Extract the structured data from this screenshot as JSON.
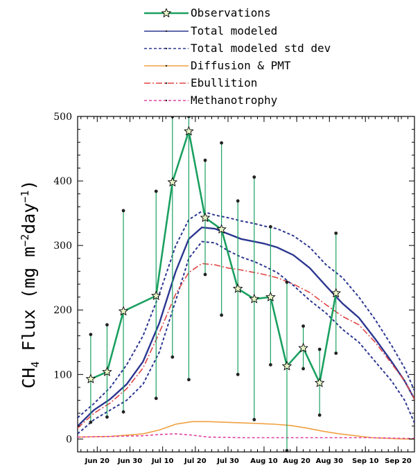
{
  "chart_data": {
    "type": "line",
    "ylabel_main": "CH",
    "ylabel_sub": "4",
    "ylabel_rest": " Flux (mg m",
    "ylabel_sup1": "−2",
    "ylabel_mid": "day",
    "ylabel_sup2": "−1",
    "ylabel_end": ")",
    "ylim": [
      -20,
      500
    ],
    "xlim": [
      165,
      268
    ],
    "yticks": [
      0,
      100,
      200,
      300,
      400,
      500
    ],
    "xticks": [
      {
        "day": 171,
        "label": "Jun 20"
      },
      {
        "day": 181,
        "label": "Jun 30"
      },
      {
        "day": 191,
        "label": "Jul 10"
      },
      {
        "day": 201,
        "label": "Jul 20"
      },
      {
        "day": 211,
        "label": "Jul 30"
      },
      {
        "day": 222,
        "label": "Aug 10"
      },
      {
        "day": 232,
        "label": "Aug 20"
      },
      {
        "day": 242,
        "label": "Aug 30"
      },
      {
        "day": 253,
        "label": "Sep 10"
      },
      {
        "day": 263,
        "label": "Sep 20"
      }
    ],
    "legend_placement": "top",
    "series": [
      {
        "name": "Observations",
        "color": "#1aa060",
        "style": "solid-star",
        "x": [
          169,
          174,
          179,
          189,
          194,
          199,
          204,
          209,
          214,
          219,
          224,
          229,
          234,
          239,
          244,
          249,
          254
        ],
        "y": [
          93,
          104,
          198,
          222,
          398,
          477,
          343,
          325,
          233,
          217,
          220,
          113,
          141,
          87,
          226,
          null,
          null
        ],
        "ymin": [
          26,
          34,
          42,
          63,
          127,
          92,
          255,
          192,
          100,
          30,
          115,
          -18,
          109,
          37,
          133,
          null,
          null
        ],
        "ymax": [
          162,
          177,
          354,
          384,
          500,
          500,
          432,
          459,
          369,
          406,
          329,
          243,
          175,
          139,
          319,
          null,
          null
        ]
      },
      {
        "name": "Total modeled",
        "color": "#2b3690",
        "style": "solid",
        "x": [
          165,
          170,
          175,
          180,
          185,
          190,
          195,
          199,
          203,
          207,
          211,
          215,
          219,
          222,
          226,
          231,
          236,
          241,
          246,
          251,
          256,
          261,
          265,
          268
        ],
        "y": [
          20,
          45,
          62,
          85,
          120,
          180,
          260,
          310,
          328,
          326,
          318,
          310,
          306,
          303,
          297,
          285,
          265,
          237,
          210,
          188,
          155,
          120,
          90,
          62
        ]
      },
      {
        "name": "Total modeled std dev (upper)",
        "color": "#2b3690",
        "style": "dashed",
        "x": [
          165,
          170,
          175,
          180,
          185,
          190,
          195,
          199,
          203,
          207,
          211,
          215,
          219,
          222,
          226,
          231,
          236,
          241,
          246,
          251,
          256,
          261,
          265,
          268
        ],
        "y": [
          33,
          55,
          80,
          115,
          160,
          225,
          300,
          340,
          353,
          347,
          343,
          338,
          334,
          330,
          326,
          315,
          297,
          270,
          250,
          220,
          185,
          145,
          110,
          75
        ]
      },
      {
        "name": "Total modeled std dev (lower)",
        "color": "#2b3690",
        "style": "dashed",
        "x": [
          165,
          170,
          175,
          180,
          185,
          190,
          195,
          199,
          203,
          207,
          211,
          215,
          219,
          222,
          226,
          231,
          236,
          241,
          246,
          251,
          256,
          261,
          265,
          268
        ],
        "y": [
          8,
          30,
          45,
          60,
          85,
          135,
          215,
          280,
          306,
          304,
          292,
          282,
          275,
          268,
          258,
          238,
          215,
          195,
          170,
          150,
          120,
          90,
          60,
          25
        ]
      },
      {
        "name": "Diffusion & PMT",
        "color": "#f0a040",
        "style": "solid",
        "x": [
          165,
          175,
          185,
          190,
          195,
          200,
          205,
          210,
          215,
          220,
          225,
          230,
          235,
          240,
          245,
          250,
          255,
          260,
          265,
          268
        ],
        "y": [
          3,
          4,
          8,
          14,
          23,
          27,
          27,
          26,
          25,
          24,
          23,
          21,
          17,
          12,
          8,
          5,
          2,
          1,
          0,
          0
        ]
      },
      {
        "name": "Ebullition",
        "color": "#e04545",
        "style": "dashdot",
        "x": [
          165,
          170,
          175,
          180,
          185,
          190,
          195,
          199,
          203,
          207,
          211,
          215,
          219,
          222,
          226,
          231,
          236,
          241,
          246,
          251,
          256,
          261,
          265,
          268
        ],
        "y": [
          17,
          40,
          56,
          78,
          110,
          165,
          225,
          258,
          272,
          270,
          265,
          262,
          258,
          255,
          250,
          240,
          227,
          208,
          190,
          177,
          150,
          117,
          90,
          62
        ]
      },
      {
        "name": "Methanotrophy",
        "color": "#e040a0",
        "style": "dashed",
        "x": [
          165,
          175,
          185,
          190,
          195,
          200,
          205,
          215,
          225,
          235,
          245,
          255,
          265,
          268
        ],
        "y": [
          3,
          4,
          5,
          7,
          8,
          6,
          3,
          2,
          2,
          2,
          2,
          2,
          1,
          1
        ]
      }
    ]
  }
}
